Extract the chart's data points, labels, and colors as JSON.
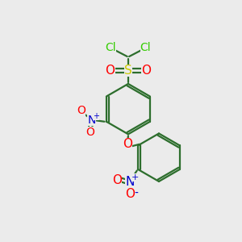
{
  "bg_color": "#ebebeb",
  "colors": {
    "Cl": "#33cc00",
    "S": "#cccc00",
    "O": "#ff0000",
    "N": "#0000cc",
    "bond": "#2d6e2d"
  },
  "figsize": [
    3.0,
    3.0
  ],
  "dpi": 100
}
